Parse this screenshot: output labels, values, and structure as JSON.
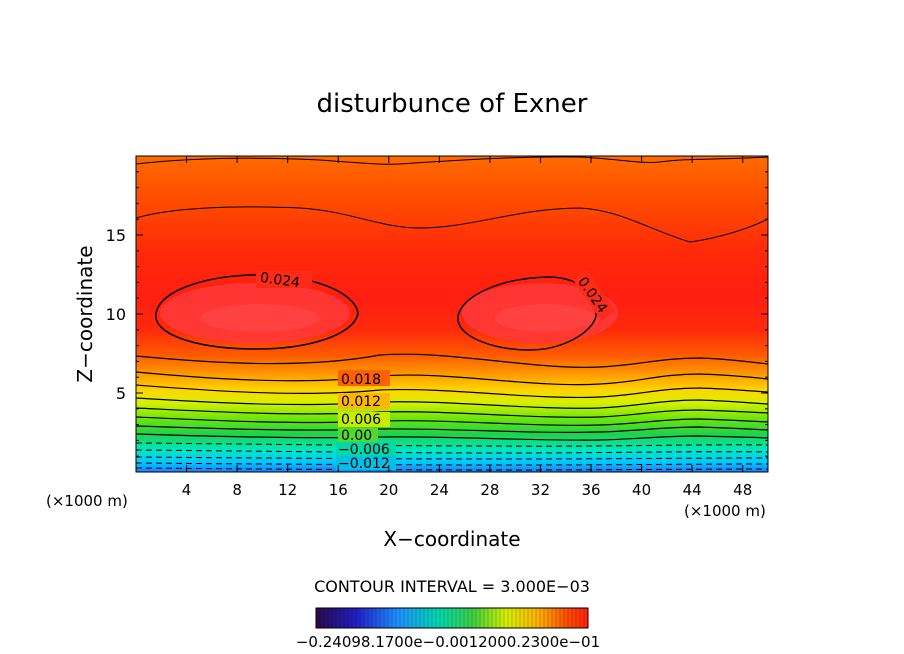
{
  "chart_data": {
    "type": "contour",
    "title": "disturbunce of Exner",
    "xlabel": "X−coordinate",
    "ylabel": "Z−coordinate",
    "x_unit": "(×1000 m)",
    "y_unit": "(×1000 m)",
    "xlim": [
      0,
      50
    ],
    "ylim": [
      0,
      20
    ],
    "x_ticks": [
      4,
      8,
      12,
      16,
      20,
      24,
      28,
      32,
      36,
      40,
      44,
      48
    ],
    "y_ticks": [
      5,
      10,
      15
    ],
    "contour_interval_text": "CONTOUR INTERVAL = 3.000E−03",
    "contour_labels": [
      "0.024",
      "0.024",
      "0.018",
      "0.012",
      "0.006",
      "0.00",
      "−0.006",
      "−0.012"
    ],
    "colorbar_labels_text": "−0.24098.1700e−0.0012000.2300e−01",
    "grid": false,
    "legend": "colorbar-bottom"
  }
}
